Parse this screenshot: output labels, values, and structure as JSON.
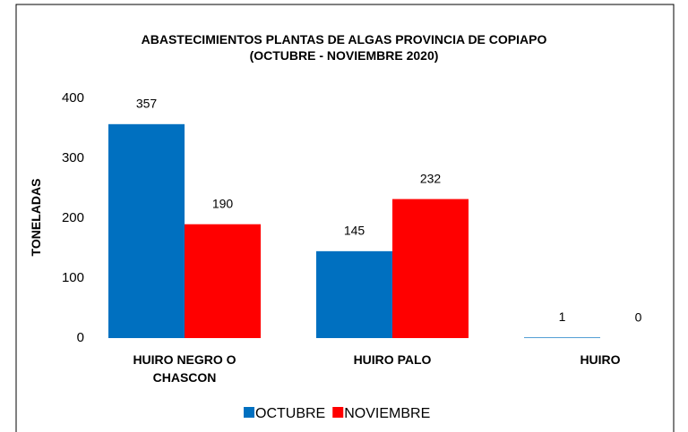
{
  "chart_data": {
    "type": "bar",
    "title": "ABASTECIMIENTOS PLANTAS  DE ALGAS PROVINCIA DE COPIAPO (OCTUBRE - NOVIEMBRE 2020)",
    "y_label": "TONELADAS",
    "categories": [
      "HUIRO NEGRO O CHASCON",
      "HUIRO PALO",
      "HUIRO"
    ],
    "series": [
      {
        "name": "OCTUBRE",
        "color": "#0070c0",
        "values": [
          357,
          145,
          1
        ]
      },
      {
        "name": "NOVIEMBRE",
        "color": "#ff0000",
        "values": [
          190,
          232,
          0
        ]
      }
    ],
    "ylim": [
      0,
      400
    ],
    "yticks": [
      0,
      100,
      200,
      300,
      400
    ],
    "grid": false,
    "legend": "bottom"
  }
}
